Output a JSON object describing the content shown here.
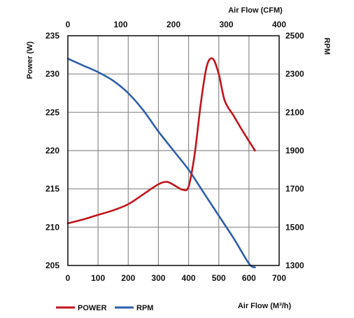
{
  "chart_data": {
    "type": "line",
    "xlabel": "Air Flow (M³/h)",
    "x2label": "Air Flow (CFM)",
    "ylabel": "Power (W)",
    "y2label": "RPM",
    "xlim": [
      0,
      700
    ],
    "x2lim": [
      0,
      400
    ],
    "ylim": [
      205,
      235
    ],
    "y2lim": [
      1300,
      2500
    ],
    "xticks": [
      "0",
      "100",
      "200",
      "300",
      "400",
      "500",
      "600",
      "700"
    ],
    "x2ticks": [
      "0",
      "100",
      "200",
      "300",
      "400"
    ],
    "yticks": [
      "205",
      "210",
      "215",
      "220",
      "225",
      "230",
      "235"
    ],
    "y2ticks": [
      "1300",
      "1500",
      "1700",
      "1900",
      "2100",
      "2300",
      "2500"
    ],
    "grid": true,
    "legend_position": "bottom-left",
    "series": [
      {
        "name": "POWER",
        "axis": "left",
        "color": "#c0141c",
        "x": [
          0,
          50,
          100,
          150,
          200,
          250,
          300,
          330,
          360,
          380,
          400,
          420,
          440,
          460,
          480,
          500,
          520,
          550,
          580,
          620
        ],
        "y": [
          210.5,
          211.0,
          211.6,
          212.2,
          213.0,
          214.3,
          215.6,
          215.9,
          215.3,
          214.9,
          215.3,
          219.5,
          226.0,
          231.0,
          232.0,
          230.0,
          226.5,
          224.5,
          222.5,
          220.0
        ]
      },
      {
        "name": "RPM",
        "axis": "right",
        "color": "#2e5fa9",
        "x": [
          0,
          50,
          100,
          150,
          200,
          250,
          300,
          350,
          400,
          450,
          500,
          550,
          600,
          620
        ],
        "y": [
          2380,
          2345,
          2310,
          2265,
          2200,
          2110,
          2000,
          1900,
          1800,
          1680,
          1560,
          1440,
          1310,
          1290
        ]
      }
    ]
  }
}
